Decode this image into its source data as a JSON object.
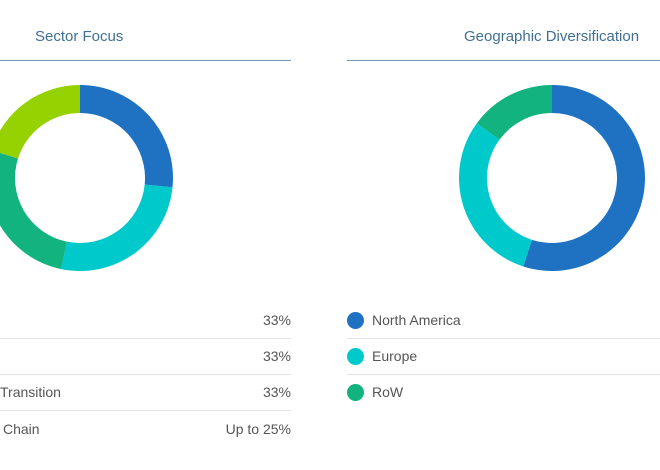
{
  "colors": {
    "blue": "#1f72c2",
    "cyan": "#00c9cb",
    "green": "#12b37f",
    "lime": "#96d100"
  },
  "chart_data": [
    {
      "type": "pie",
      "title": "Sector Focus",
      "labels": [
        "",
        "",
        "Transition",
        "Chain"
      ],
      "values": [
        33,
        33,
        33,
        25
      ],
      "value_labels": [
        "33%",
        "33%",
        "33%",
        "Up to 25%"
      ],
      "colors": [
        "#1f72c2",
        "#00c9cb",
        "#12b37f",
        "#96d100"
      ]
    },
    {
      "type": "pie",
      "title": "Geographic Diversification",
      "labels": [
        "North America",
        "Europe",
        "RoW"
      ],
      "values": [
        55,
        30,
        15
      ],
      "colors": [
        "#1f72c2",
        "#00c9cb",
        "#12b37f"
      ]
    }
  ]
}
